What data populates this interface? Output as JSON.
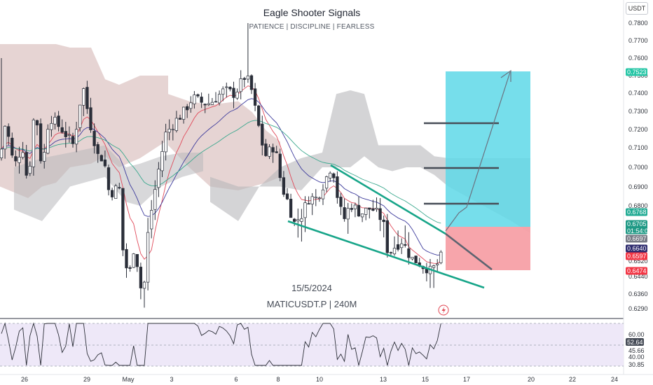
{
  "header": {
    "title": "Eagle Shooter Signals",
    "subtitle": "PATIENCE  |  DISCIPLINE  |  FEARLESS",
    "currency": "USDT"
  },
  "watermark": {
    "date": "15/5/2024",
    "symbol": "MATICUSDT.P | 240M"
  },
  "colors": {
    "take_profit_zone": "#5ed8e8",
    "stop_loss_zone": "#f7a0a6",
    "wedge_lines": "#17a589",
    "target_lines": "#474d57",
    "up_candle": "#ffffff",
    "down_candle": "#2a2e39",
    "ema_fast": "#e04a5a",
    "ema_mid": "#3d3b9c",
    "ema_slow": "#3aa88e",
    "cloud_bearish": "#d6b8b6",
    "cloud_grey": "#b8b8bb",
    "rsi_band": "#ece6f7",
    "rsi_line": "#2c2f38"
  },
  "chart_data": [
    {
      "type": "candlestick",
      "series": [
        {
          "name": "MATICUSDT.P",
          "type": "candlestick"
        },
        {
          "type": "line"
        },
        {
          "type": "line"
        },
        {
          "type": "line"
        },
        {
          "type": "ichimoku-cloud"
        }
      ],
      "y_axis": {
        "ticks": [
          "0.7800",
          "0.7700",
          "0.7600",
          "0.7500",
          "0.7400",
          "0.7300",
          "0.7200",
          "0.7100",
          "0.7000",
          "0.6900",
          "0.6800",
          "0.6520",
          "0.6440",
          "0.6360",
          "0.6290"
        ],
        "ylim": [
          0.628,
          0.784
        ]
      },
      "x_axis": {
        "ticks": [
          "26",
          "29",
          "May",
          "3",
          "6",
          "8",
          "10",
          "13",
          "15",
          "17",
          "20",
          "22",
          "24"
        ]
      },
      "price_tags": [
        {
          "label": "0.7523",
          "value": 0.7523,
          "color": "#26c6a6"
        },
        {
          "label": "0.6768",
          "value": 0.6768,
          "color": "#22ab94"
        },
        {
          "label": "0.6705",
          "sub": "01:54:01",
          "value": 0.6705,
          "color": "#1f9985"
        },
        {
          "label": "0.6697",
          "value": 0.6697,
          "color": "#787b86"
        },
        {
          "label": "0.6640",
          "value": 0.664,
          "color": "#2d2b6e"
        },
        {
          "label": "0.6597",
          "value": 0.6597,
          "color": "#f23645"
        },
        {
          "label": "0.6474",
          "value": 0.6474,
          "color": "#f23645"
        }
      ],
      "annotations": {
        "take_profit_top": 0.7523,
        "entry": 0.6768,
        "stop_loss": 0.6474,
        "target_levels": [
          0.681,
          0.7,
          0.723
        ],
        "pattern": "falling-wedge"
      },
      "last_price": 0.6705
    },
    {
      "type": "line",
      "series": [
        {
          "name": "RSI"
        }
      ],
      "y_axis": {
        "ticks": [
          "60.00",
          "52.64",
          "45.66",
          "40.00",
          "30.85"
        ]
      },
      "last_value": 52.64
    }
  ]
}
